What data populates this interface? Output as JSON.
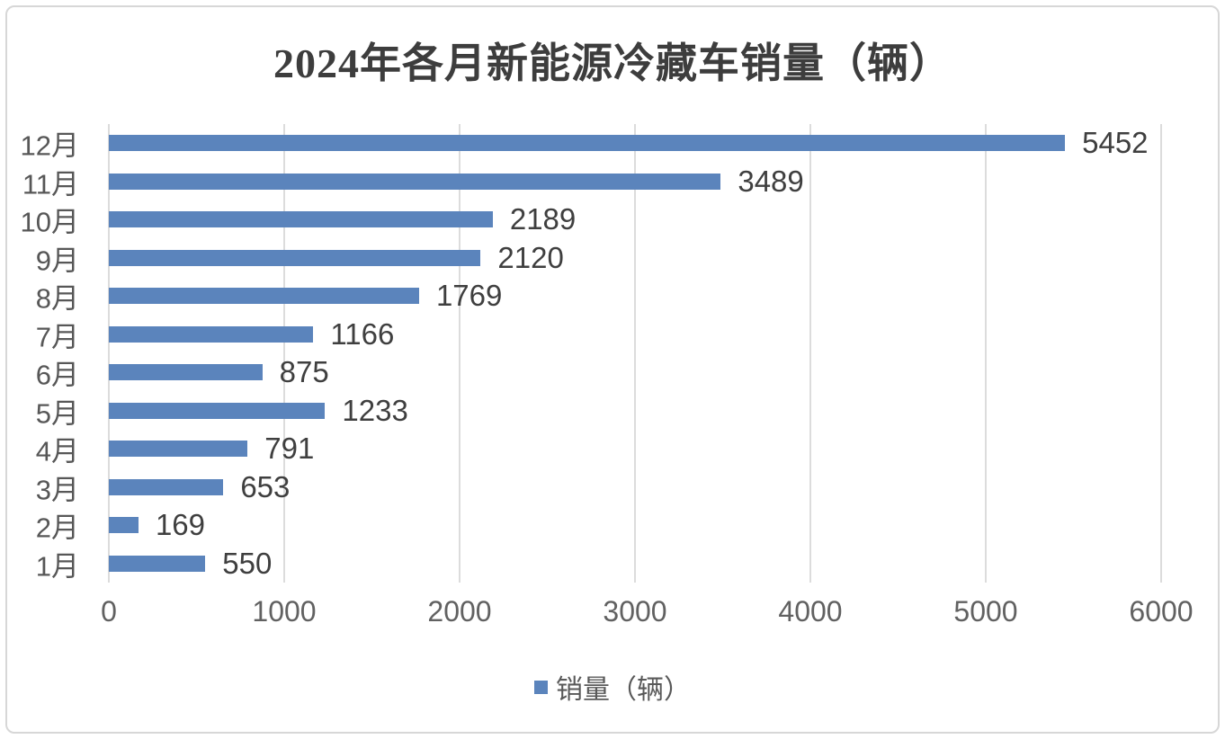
{
  "title": "2024年各月新能源冷藏车销量（辆）",
  "legend": {
    "label": "销量（辆）"
  },
  "colors": {
    "bar": "#5b84bc",
    "grid": "#dcdcdc",
    "title_text": "#3d3d3d",
    "value_text": "#3f3f3f",
    "tick_text": "#616161",
    "category_text": "#575757",
    "frame_border": "#d7d7d7"
  },
  "chart_data": {
    "type": "bar",
    "orientation": "horizontal",
    "title": "2024年各月新能源冷藏车销量（辆）",
    "categories": [
      "12月",
      "11月",
      "10月",
      "9月",
      "8月",
      "7月",
      "6月",
      "5月",
      "4月",
      "3月",
      "2月",
      "1月"
    ],
    "values": [
      5452,
      3489,
      2189,
      2120,
      1769,
      1166,
      875,
      1233,
      791,
      653,
      169,
      550
    ],
    "data_labels": [
      "5452",
      "3489",
      "2189",
      "2120",
      "1769",
      "1166",
      "875",
      "1233",
      "791",
      "653",
      "169",
      "550"
    ],
    "xlabel": "",
    "ylabel": "",
    "xlim": [
      0,
      6000
    ],
    "xticks": [
      "0",
      "1000",
      "2000",
      "3000",
      "4000",
      "5000",
      "6000"
    ],
    "grid": "vertical",
    "legend_entries": [
      "销量（辆）"
    ],
    "legend_position": "bottom"
  }
}
